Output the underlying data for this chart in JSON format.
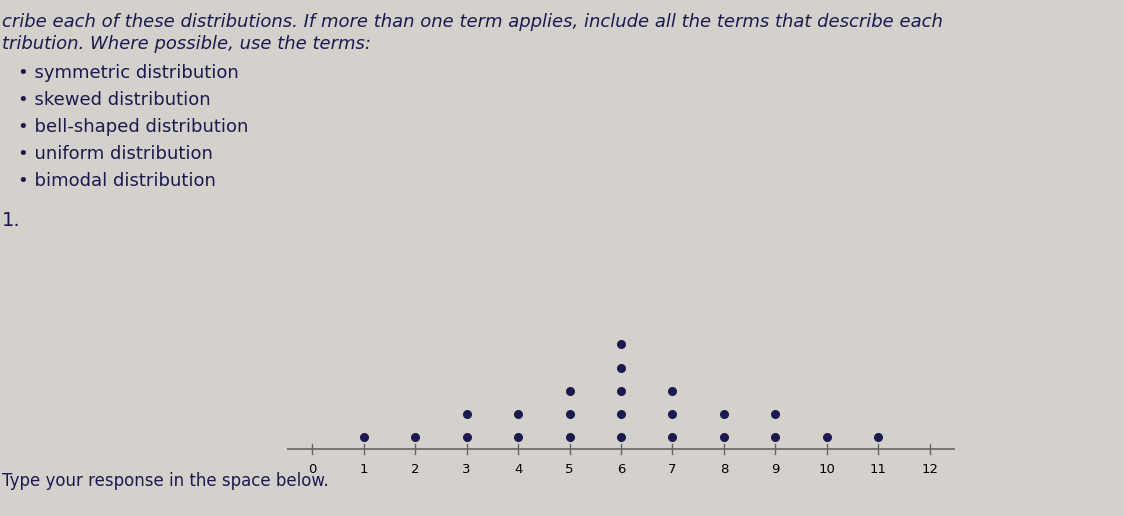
{
  "dot_counts": {
    "0": 0,
    "1": 1,
    "2": 1,
    "3": 2,
    "4": 2,
    "5": 3,
    "6": 5,
    "7": 3,
    "8": 2,
    "9": 2,
    "10": 1,
    "11": 1,
    "12": 0
  },
  "x_min": 0,
  "x_max": 12,
  "dot_color": "#1a1a4e",
  "dot_size": 28,
  "axis_line_color": "#666666",
  "background_color": "#d4d0cc",
  "text_color": "#1a1a4e",
  "bullet_items": [
    "symmetric distribution",
    "skewed distribution",
    "bell-shaped distribution",
    "uniform distribution",
    "bimodal distribution"
  ],
  "header_text": "cribe each of these distributions. If more than one term applies, include all the terms that describe each",
  "header_text2": "tribution. Where possible, use the terms:",
  "label1": "1.",
  "footer_text": "Type your response in the space below.",
  "font_size_header": 13,
  "font_size_bullets": 13,
  "font_size_label": 14,
  "font_size_footer": 12
}
